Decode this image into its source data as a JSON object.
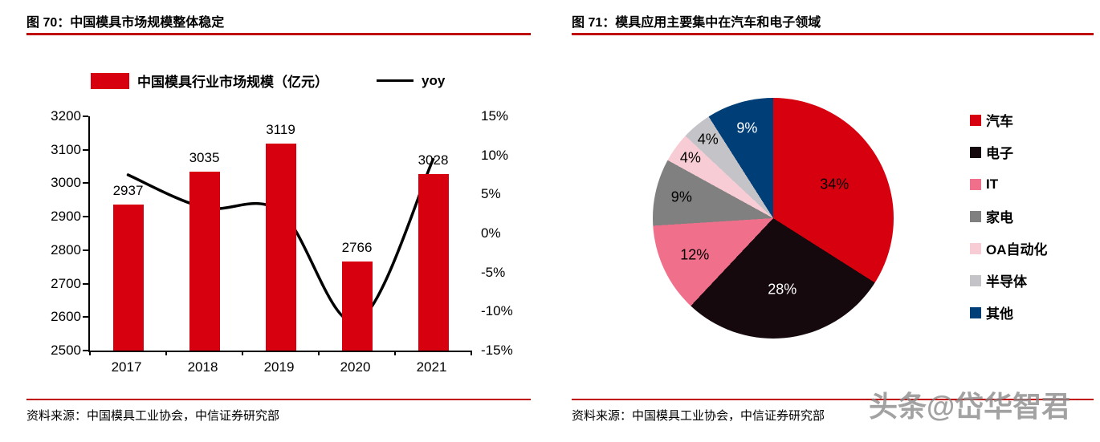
{
  "theme": {
    "accent_red": "#c00000"
  },
  "page": {
    "watermark": "头条@岱华智君"
  },
  "left_panel": {
    "title": "图 70：中国模具市场规模整体稳定",
    "source": "资料来源：中国模具工业协会，中信证券研究部"
  },
  "right_panel": {
    "title": "图 71：模具应用主要集中在汽车和电子领域",
    "source": "资料来源：中国模具工业协会，中信证券研究部"
  },
  "chart_data": [
    {
      "type": "bar",
      "title": "图 70：中国模具市场规模整体稳定",
      "categories": [
        "2017",
        "2018",
        "2019",
        "2020",
        "2021"
      ],
      "series": [
        {
          "name": "中国模具行业市场规模（亿元）",
          "type": "bar",
          "axis": "left",
          "color": "#d7000f",
          "values": [
            2937,
            3035,
            3119,
            2766,
            3028
          ]
        },
        {
          "name": "yoy",
          "type": "line",
          "axis": "right",
          "color": "#000000",
          "values": [
            7.5,
            3.3,
            2.8,
            -11.3,
            9.5
          ]
        }
      ],
      "bar_labels": [
        "2937",
        "3035",
        "3119",
        "2766",
        "3028"
      ],
      "left_axis": {
        "min": 2500,
        "max": 3200,
        "step": 100,
        "ticks": [
          "3200",
          "3100",
          "3000",
          "2900",
          "2800",
          "2700",
          "2600",
          "2500"
        ]
      },
      "right_axis": {
        "min": -15,
        "max": 15,
        "step": 5,
        "ticks": [
          "15%",
          "10%",
          "5%",
          "0%",
          "-5%",
          "-10%",
          "-15%"
        ]
      },
      "grid": false,
      "legend_position": "top"
    },
    {
      "type": "pie",
      "title": "图 71：模具应用主要集中在汽车和电子领域",
      "slices": [
        {
          "label": "汽车",
          "value": 34,
          "display": "34%",
          "color": "#d7000f",
          "text_color": "#000000"
        },
        {
          "label": "电子",
          "value": 28,
          "display": "28%",
          "color": "#15090d",
          "text_color": "#ffffff"
        },
        {
          "label": "IT",
          "value": 12,
          "display": "12%",
          "color": "#f0708c",
          "text_color": "#000000"
        },
        {
          "label": "家电",
          "value": 9,
          "display": "9%",
          "color": "#808080",
          "text_color": "#000000"
        },
        {
          "label": "OA自动化",
          "value": 4,
          "display": "4%",
          "color": "#f7ccd4",
          "text_color": "#000000"
        },
        {
          "label": "半导体",
          "value": 4,
          "display": "4%",
          "color": "#c4c4c8",
          "text_color": "#000000"
        },
        {
          "label": "其他",
          "value": 9,
          "display": "9%",
          "color": "#003e78",
          "text_color": "#ffffff"
        }
      ],
      "legend_position": "right"
    }
  ]
}
